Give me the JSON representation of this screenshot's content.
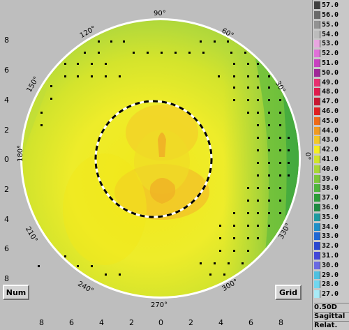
{
  "map": {
    "y_ticks": [
      "8",
      "6",
      "4",
      "2",
      "0",
      "2",
      "4",
      "6",
      "8"
    ],
    "x_ticks": [
      "8",
      "6",
      "4",
      "2",
      "0",
      "2",
      "4",
      "6",
      "8"
    ],
    "angle_labels": {
      "a90": "90°",
      "a60": "60°",
      "a30": "30°",
      "a0": "0°",
      "a330": "330°",
      "a300": "300°",
      "a270": "270°",
      "a240": "240°",
      "a210": "210°",
      "a180": "180°",
      "a150": "150°",
      "a120": "120°"
    },
    "colors": {
      "background": "#bebebe",
      "deep_yellow": "#f2e81a",
      "yellow": "#eeec2a",
      "yellow_green": "#d4e42c",
      "light_green": "#b6da3a",
      "green": "#8ccc40",
      "dark_green": "#3ea83e",
      "orange": "#f0b426"
    }
  },
  "buttons": {
    "num_label": "Num",
    "grid_label": "Grid"
  },
  "scale": {
    "rows": [
      {
        "value": "57.0",
        "color": "#404040"
      },
      {
        "value": "56.0",
        "color": "#6a6a6a"
      },
      {
        "value": "55.0",
        "color": "#929292"
      },
      {
        "value": "54.0",
        "color": "#bcbcbc"
      },
      {
        "value": "53.0",
        "color": "#e8a6e0"
      },
      {
        "value": "52.0",
        "color": "#e070d8"
      },
      {
        "value": "51.0",
        "color": "#c840c0"
      },
      {
        "value": "50.0",
        "color": "#a02898"
      },
      {
        "value": "49.0",
        "color": "#e83070"
      },
      {
        "value": "48.0",
        "color": "#e01c4c"
      },
      {
        "value": "47.0",
        "color": "#c81830"
      },
      {
        "value": "46.0",
        "color": "#e02020"
      },
      {
        "value": "45.0",
        "color": "#ee6a18"
      },
      {
        "value": "44.0",
        "color": "#f09a22"
      },
      {
        "value": "43.0",
        "color": "#f2c828"
      },
      {
        "value": "42.0",
        "color": "#f4ee20"
      },
      {
        "value": "41.0",
        "color": "#d0e428"
      },
      {
        "value": "40.0",
        "color": "#a8d634"
      },
      {
        "value": "39.0",
        "color": "#7cc638"
      },
      {
        "value": "38.0",
        "color": "#4eb43c"
      },
      {
        "value": "37.0",
        "color": "#2c9c38"
      },
      {
        "value": "36.0",
        "color": "#1e8a40"
      },
      {
        "value": "35.0",
        "color": "#1e9aa0"
      },
      {
        "value": "34.0",
        "color": "#2090c8"
      },
      {
        "value": "33.0",
        "color": "#2068d4"
      },
      {
        "value": "32.0",
        "color": "#2a48d0"
      },
      {
        "value": "31.0",
        "color": "#4248d8"
      },
      {
        "value": "30.0",
        "color": "#6a6ae2"
      },
      {
        "value": "29.0",
        "color": "#4ec0e0"
      },
      {
        "value": "28.0",
        "color": "#70d6ee"
      },
      {
        "value": "27.0",
        "color": "#a8eaf6"
      }
    ],
    "step_label": "0.50D",
    "mode_label": "Sagittal",
    "type_label": "Relat."
  }
}
